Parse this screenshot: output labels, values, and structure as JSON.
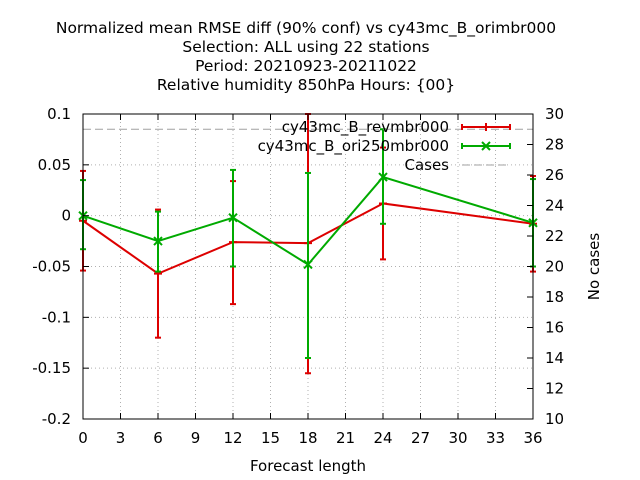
{
  "chart_data": {
    "type": "line",
    "title_lines": [
      "Normalized mean RMSE diff (90% conf) vs cy43mc_B_orimbr000",
      "Selection: ALL using    22 stations",
      "Period: 20210923-20211022",
      "Relative humidity 850hPa   Hours: {00}"
    ],
    "xlabel": "Forecast length",
    "ylabel": "",
    "y2label": "No cases",
    "xlim": [
      0,
      36
    ],
    "ylim": [
      -0.2,
      0.1
    ],
    "y2lim": [
      10,
      30
    ],
    "xticks": [
      "0",
      "3",
      "6",
      "9",
      "12",
      "15",
      "18",
      "21",
      "24",
      "27",
      "30",
      "33",
      "36"
    ],
    "yticks": [
      "0.1",
      "0.05",
      "0",
      "-0.05",
      "-0.1",
      "-0.15",
      "-0.2"
    ],
    "y2ticks": [
      "30",
      "28",
      "26",
      "24",
      "22",
      "20",
      "18",
      "16",
      "14",
      "12",
      "10"
    ],
    "grid": true,
    "legend_position": "top-right",
    "x": [
      0,
      6,
      12,
      18,
      24,
      36
    ],
    "series": [
      {
        "name": "cy43mc_B_revmbr000",
        "color": "#dd0000",
        "marker": "plus",
        "values": [
          -0.005,
          -0.057,
          -0.026,
          -0.027,
          0.012,
          -0.008
        ],
        "err_low": [
          -0.054,
          -0.12,
          -0.087,
          -0.155,
          -0.043,
          -0.055
        ],
        "err_high": [
          0.044,
          0.006,
          0.034,
          0.1,
          0.067,
          0.039
        ]
      },
      {
        "name": "cy43mc_B_ori250mbr000",
        "color": "#00aa00",
        "marker": "cross",
        "values": [
          0.0,
          -0.025,
          -0.002,
          -0.048,
          0.038,
          -0.007
        ],
        "err_low": [
          -0.033,
          -0.055,
          -0.05,
          -0.14,
          -0.008,
          -0.05
        ],
        "err_high": [
          0.035,
          0.004,
          0.045,
          0.042,
          0.085,
          0.036
        ]
      },
      {
        "name": "Cases",
        "color": "#a0a0a0",
        "dash": true,
        "axis": "y2",
        "values": [
          29,
          29,
          29,
          29,
          29,
          29
        ]
      }
    ]
  }
}
